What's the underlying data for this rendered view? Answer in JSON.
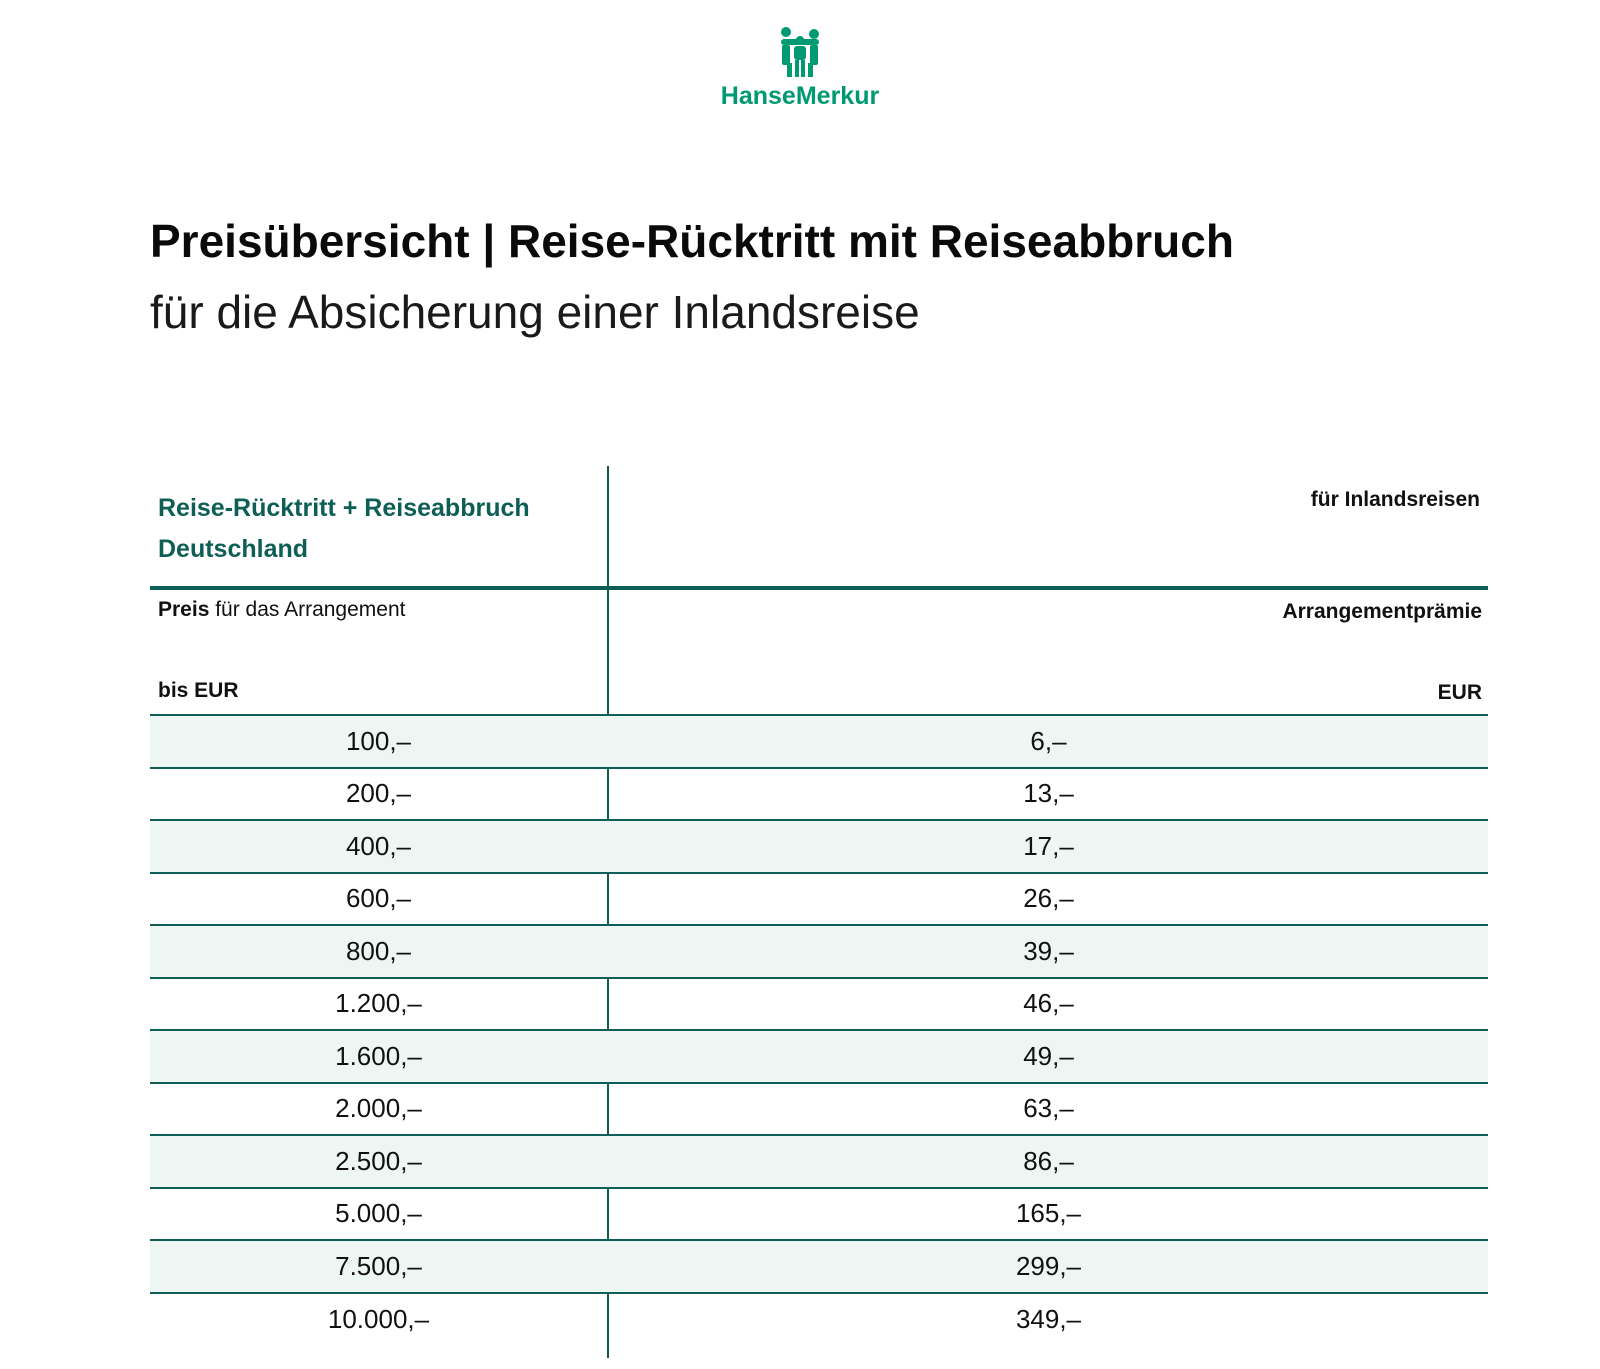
{
  "logo": {
    "text": "HanseMerkur",
    "icon": "hansemerkur-people-icon",
    "color": "#009a72"
  },
  "title": "Preisübersicht | Reise-Rücktritt mit Reiseabbruch",
  "subtitle": "für die Absicherung einer Inlandsreise",
  "table": {
    "product_line1": "Reise-Rücktritt + Reiseabbruch",
    "product_line2": "Deutschland",
    "column_heading": "für Inlandsreisen",
    "price_label_bold": "Preis",
    "price_label_rest": " für das Arrangement",
    "premium_label": "Arrangementprämie",
    "unit_left": "bis EUR",
    "unit_right": "EUR",
    "accent_color": "#0d5e55",
    "row_shade_color": "#edf6f2",
    "rows": [
      {
        "price": "100,–",
        "premium": "6,–"
      },
      {
        "price": "200,–",
        "premium": "13,–"
      },
      {
        "price": "400,–",
        "premium": "17,–"
      },
      {
        "price": "600,–",
        "premium": "26,–"
      },
      {
        "price": "800,–",
        "premium": "39,–"
      },
      {
        "price": "1.200,–",
        "premium": "46,–"
      },
      {
        "price": "1.600,–",
        "premium": "49,–"
      },
      {
        "price": "2.000,–",
        "premium": "63,–"
      },
      {
        "price": "2.500,–",
        "premium": "86,–"
      },
      {
        "price": "5.000,–",
        "premium": "165,–"
      },
      {
        "price": "7.500,–",
        "premium": "299,–"
      },
      {
        "price": "10.000,–",
        "premium": "349,–"
      }
    ]
  }
}
